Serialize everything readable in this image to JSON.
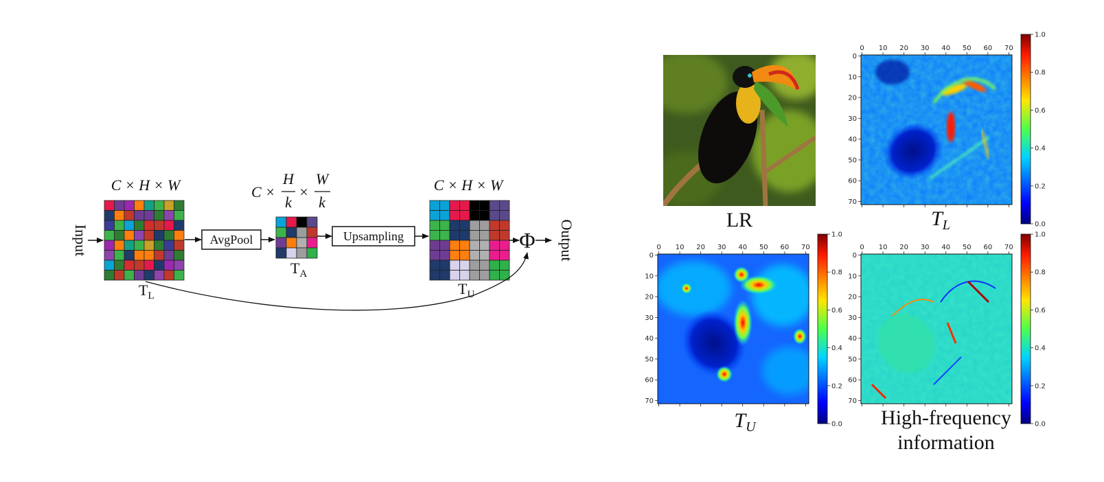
{
  "diagram": {
    "input_label": "Input",
    "output_label": "Output",
    "tl_dims": "C × H × W",
    "ta_dims_prefix": "C ×",
    "ta_frac_h_num": "H",
    "ta_frac_h_den": "k",
    "ta_times": "×",
    "ta_frac_w_num": "W",
    "ta_frac_w_den": "k",
    "tu_dims": "C × H × W",
    "avgpool_label": "AvgPool",
    "upsampling_label": "Upsampling",
    "tl_label": "T",
    "tl_sub": "L",
    "ta_label": "T",
    "ta_sub": "A",
    "tu_label": "T",
    "tu_sub": "U",
    "add_symbol": "Φ"
  },
  "panels": {
    "lr_caption": "LR",
    "tl_caption": "T",
    "tl_caption_sub": "L",
    "tu_caption": "T",
    "tu_caption_sub": "U",
    "hf_caption_line1": "High-frequency",
    "hf_caption_line2": "information",
    "x_ticks": [
      "0",
      "10",
      "20",
      "30",
      "40",
      "50",
      "60",
      "70"
    ],
    "y_ticks": [
      "0",
      "10",
      "20",
      "30",
      "40",
      "50",
      "60",
      "70"
    ],
    "colorbar_ticks": [
      "0.0",
      "0.2",
      "0.4",
      "0.6",
      "0.8",
      "1.0"
    ],
    "colormap": "jet"
  },
  "colors": {
    "grid_palette": [
      "#e6194b",
      "#3cb44b",
      "#0aa3d8",
      "#6f3c93",
      "#c9a227",
      "#1f3a6b",
      "#9c27b0",
      "#2e7d32",
      "#d32f2f",
      "#ff7f0e",
      "#3b3b98",
      "#8e44ad",
      "#16a085",
      "#c0392b"
    ],
    "ta_cells": [
      "#0aa3d8",
      "#e6194b",
      "#000000",
      "#5b4a8a",
      "#3cb44b",
      "#1f3a6b",
      "#9e9e9e",
      "#c0392b",
      "#6f3c93",
      "#ff7f0e",
      "#b0b0b0",
      "#e91e8c",
      "#1f3a6b",
      "#d9d2ec",
      "#9e9e9e",
      "#2fb14b"
    ]
  }
}
